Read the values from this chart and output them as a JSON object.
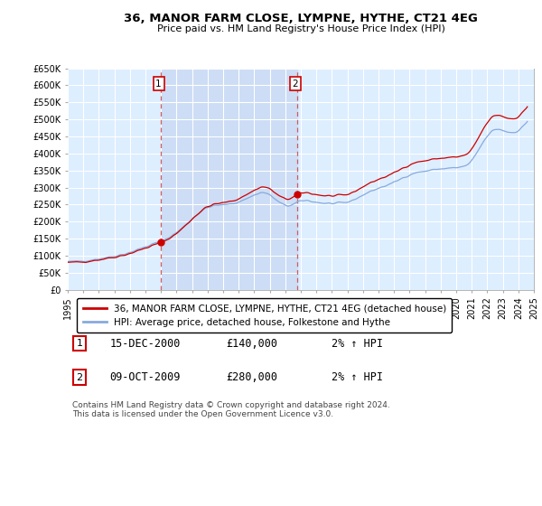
{
  "title": "36, MANOR FARM CLOSE, LYMPNE, HYTHE, CT21 4EG",
  "subtitle": "Price paid vs. HM Land Registry's House Price Index (HPI)",
  "ylabel_ticks": [
    "£0",
    "£50K",
    "£100K",
    "£150K",
    "£200K",
    "£250K",
    "£300K",
    "£350K",
    "£400K",
    "£450K",
    "£500K",
    "£550K",
    "£600K",
    "£650K"
  ],
  "ytick_values": [
    0,
    50000,
    100000,
    150000,
    200000,
    250000,
    300000,
    350000,
    400000,
    450000,
    500000,
    550000,
    600000,
    650000
  ],
  "xmin": 1995.0,
  "xmax": 2025.0,
  "ymin": 0,
  "ymax": 650000,
  "purchase1": {
    "year": 2001.0,
    "price": 140000,
    "label": "1",
    "date": "15-DEC-2000",
    "hpi_change": "2% ↑ HPI"
  },
  "purchase2": {
    "year": 2009.79,
    "price": 280000,
    "label": "2",
    "date": "09-OCT-2009",
    "hpi_change": "2% ↑ HPI"
  },
  "legend_label_price": "36, MANOR FARM CLOSE, LYMPNE, HYTHE, CT21 4EG (detached house)",
  "legend_label_hpi": "HPI: Average price, detached house, Folkestone and Hythe",
  "footnote": "Contains HM Land Registry data © Crown copyright and database right 2024.\nThis data is licensed under the Open Government Licence v3.0.",
  "line_color_price": "#cc0000",
  "line_color_hpi": "#88aadd",
  "background_color": "#ddeeff",
  "shading_color": "#ccddf5",
  "grid_color": "#ffffff",
  "dashed_vline_color": "#cc4444"
}
